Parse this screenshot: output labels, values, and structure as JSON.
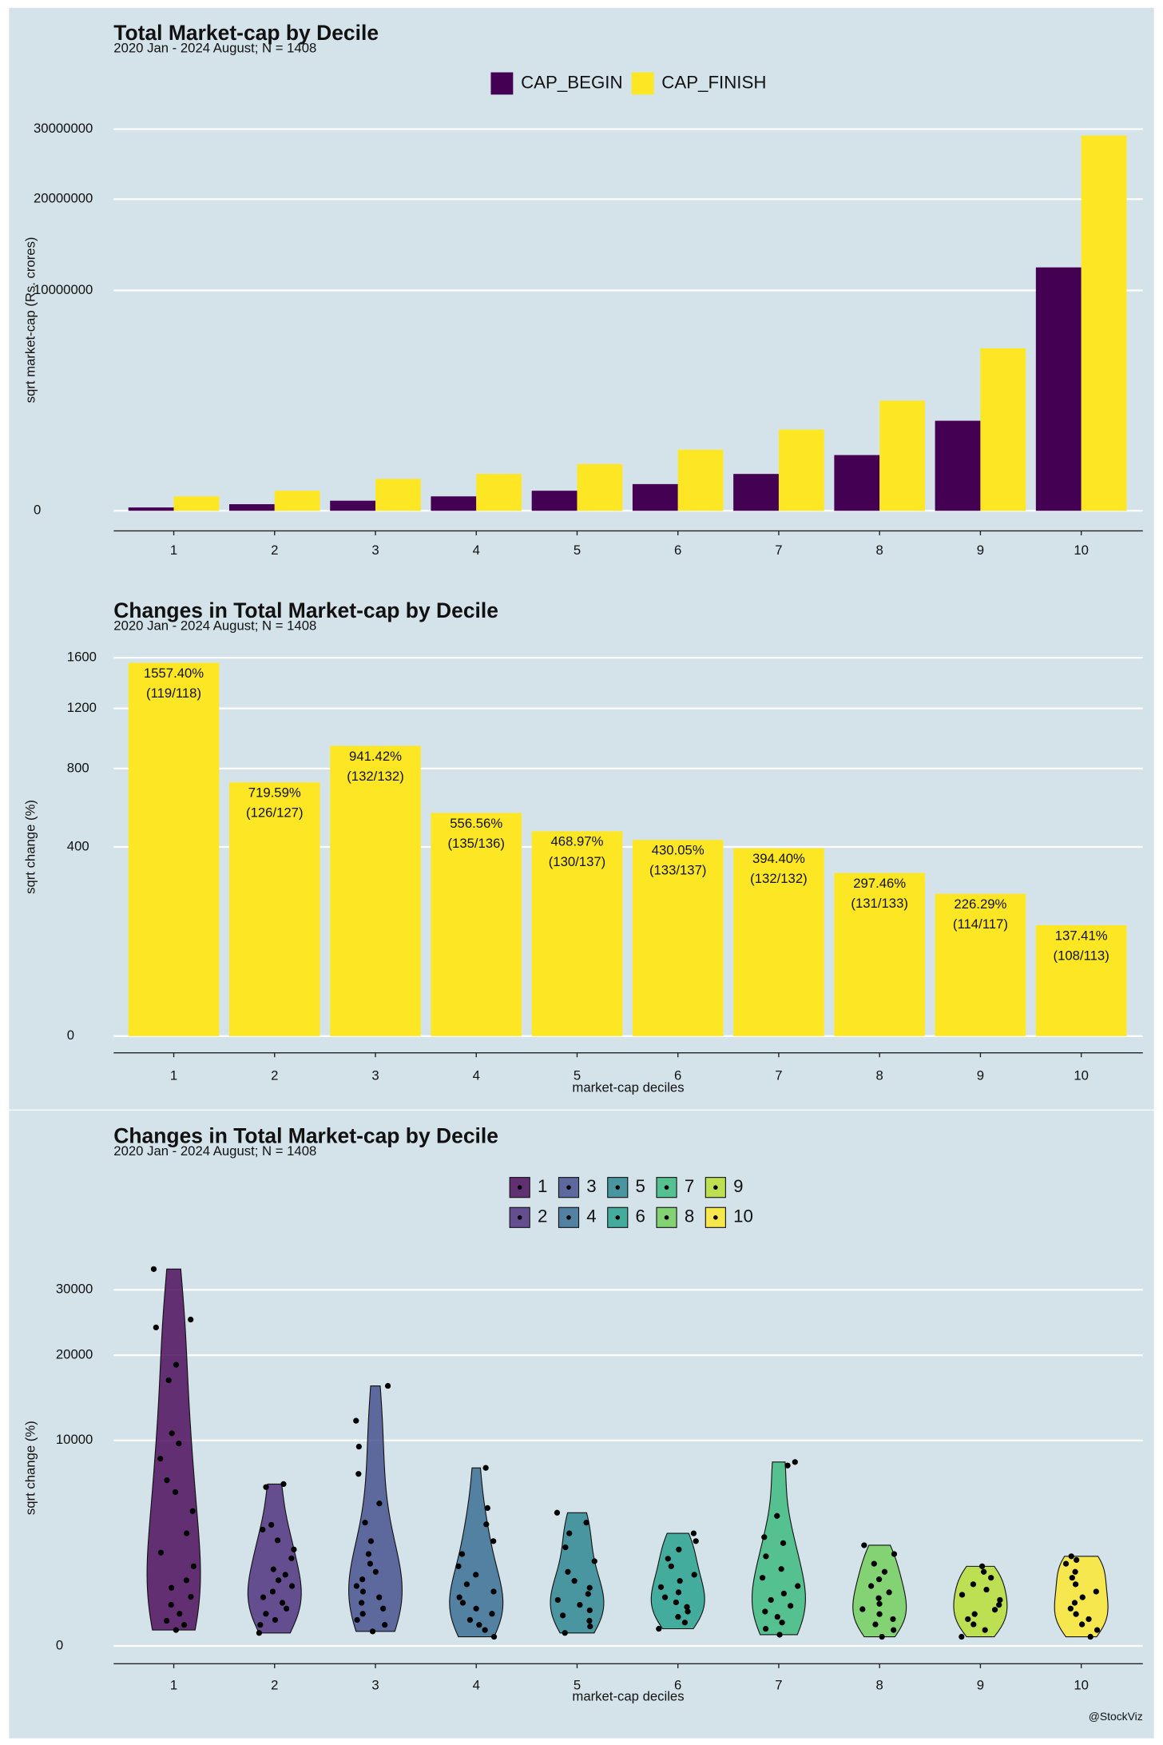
{
  "chart_data": [
    {
      "type": "bar",
      "title": "Total Market-cap by Decile",
      "subtitle": "2020 Jan - 2024 August; N = 1408",
      "y_label": "sqrt market-cap (Rs. crores)",
      "scale": "sqrt",
      "legend": "top",
      "grid": true,
      "categories": [
        "1",
        "2",
        "3",
        "4",
        "5",
        "6",
        "7",
        "8",
        "9",
        "10"
      ],
      "series": [
        {
          "name": "CAP_BEGIN",
          "color": "#440154",
          "values": [
            2300,
            9000,
            21000,
            43000,
            83000,
            147000,
            280000,
            640000,
            1670000,
            12200000
          ]
        },
        {
          "name": "CAP_FINISH",
          "color": "#fde725",
          "values": [
            43000,
            83000,
            210000,
            280000,
            450000,
            770000,
            1360000,
            2500000,
            5440000,
            29000000
          ]
        }
      ],
      "ylim": [
        0,
        30000000
      ],
      "yticks": [
        0,
        10000000,
        20000000,
        30000000
      ]
    },
    {
      "type": "bar",
      "title": "Changes in Total Market-cap by Decile",
      "subtitle": "2020 Jan - 2024 August; N = 1408",
      "x_label": "market-cap deciles",
      "y_label": "sqrt change (%)",
      "scale": "sqrt",
      "grid": true,
      "color": "#fde725",
      "categories": [
        "1",
        "2",
        "3",
        "4",
        "5",
        "6",
        "7",
        "8",
        "9",
        "10"
      ],
      "values": [
        1557.4,
        719.59,
        941.42,
        556.56,
        468.97,
        430.05,
        394.4,
        297.46,
        226.29,
        137.41
      ],
      "value_labels": [
        "1557.40%",
        "719.59%",
        "941.42%",
        "556.56%",
        "468.97%",
        "430.05%",
        "394.40%",
        "297.46%",
        "226.29%",
        "137.41%"
      ],
      "counts": [
        "(119/118)",
        "(126/127)",
        "(132/132)",
        "(135/136)",
        "(130/137)",
        "(133/137)",
        "(132/132)",
        "(131/133)",
        "(114/117)",
        "(108/113)"
      ],
      "ylim": [
        0,
        1600
      ],
      "yticks": [
        0,
        400,
        800,
        1200,
        1600
      ]
    },
    {
      "type": "violin",
      "title": "Changes in Total Market-cap by Decile",
      "subtitle": "2020 Jan - 2024 August; N = 1408",
      "x_label": "market-cap deciles",
      "y_label": "sqrt change (%)",
      "scale": "sqrt",
      "legend": "top",
      "grid": true,
      "categories": [
        "1",
        "2",
        "3",
        "4",
        "5",
        "6",
        "7",
        "8",
        "9",
        "10"
      ],
      "series": [
        {
          "name": "1",
          "color": "#440154",
          "values": [
            33600,
            25200,
            24000,
            18700,
            16700,
            10700,
            9700,
            8300,
            6500,
            5600,
            4300,
            3000,
            2060,
            1500,
            1020,
            800,
            570,
            400,
            245,
            150,
            105,
            60
          ]
        },
        {
          "name": "2",
          "color": "#482878",
          "values": [
            6200,
            5970,
            3470,
            3200,
            2640,
            2200,
            1820,
            1390,
            1200,
            1020,
            850,
            700,
            560,
            440,
            330,
            245,
            160,
            105,
            40
          ]
        },
        {
          "name": "3",
          "color": "#3e4989",
          "values": [
            16000,
            12000,
            9400,
            7000,
            4800,
            3600,
            2600,
            2000,
            1600,
            1300,
            1050,
            850,
            700,
            560,
            440,
            330,
            245,
            160,
            105,
            50
          ]
        },
        {
          "name": "4",
          "color": "#31688e",
          "values": [
            7500,
            4500,
            3500,
            2600,
            2000,
            1500,
            1200,
            900,
            700,
            560,
            440,
            330,
            245,
            160,
            105,
            60,
            20
          ]
        },
        {
          "name": "5",
          "color": "#26828e",
          "values": [
            4200,
            3600,
            3000,
            2300,
            1700,
            1300,
            1000,
            800,
            640,
            500,
            400,
            300,
            220,
            150,
            90,
            40
          ]
        },
        {
          "name": "6",
          "color": "#1f9e89",
          "values": [
            3000,
            2600,
            2200,
            1800,
            1500,
            1200,
            1000,
            820,
            680,
            560,
            450,
            360,
            280,
            200,
            130,
            70
          ]
        },
        {
          "name": "7",
          "color": "#35b779",
          "values": [
            8000,
            7700,
            4000,
            2800,
            2500,
            1900,
            1400,
            1100,
            850,
            650,
            500,
            380,
            280,
            200,
            130,
            70,
            30
          ]
        },
        {
          "name": "8",
          "color": "#6ece58",
          "values": [
            2400,
            2000,
            1600,
            1300,
            1050,
            850,
            680,
            540,
            420,
            320,
            240,
            170,
            110,
            60,
            20
          ]
        },
        {
          "name": "9",
          "color": "#b5de2b",
          "values": [
            1500,
            1300,
            1100,
            900,
            750,
            620,
            500,
            400,
            310,
            240,
            170,
            110,
            60,
            20
          ]
        },
        {
          "name": "10",
          "color": "#fde725",
          "values": [
            1900,
            1750,
            1600,
            1300,
            1100,
            900,
            700,
            560,
            440,
            330,
            240,
            170,
            110,
            60,
            20
          ]
        }
      ],
      "ylim": [
        0,
        30000
      ],
      "yticks": [
        0,
        10000,
        20000,
        30000
      ]
    }
  ],
  "footer": "@StockViz"
}
